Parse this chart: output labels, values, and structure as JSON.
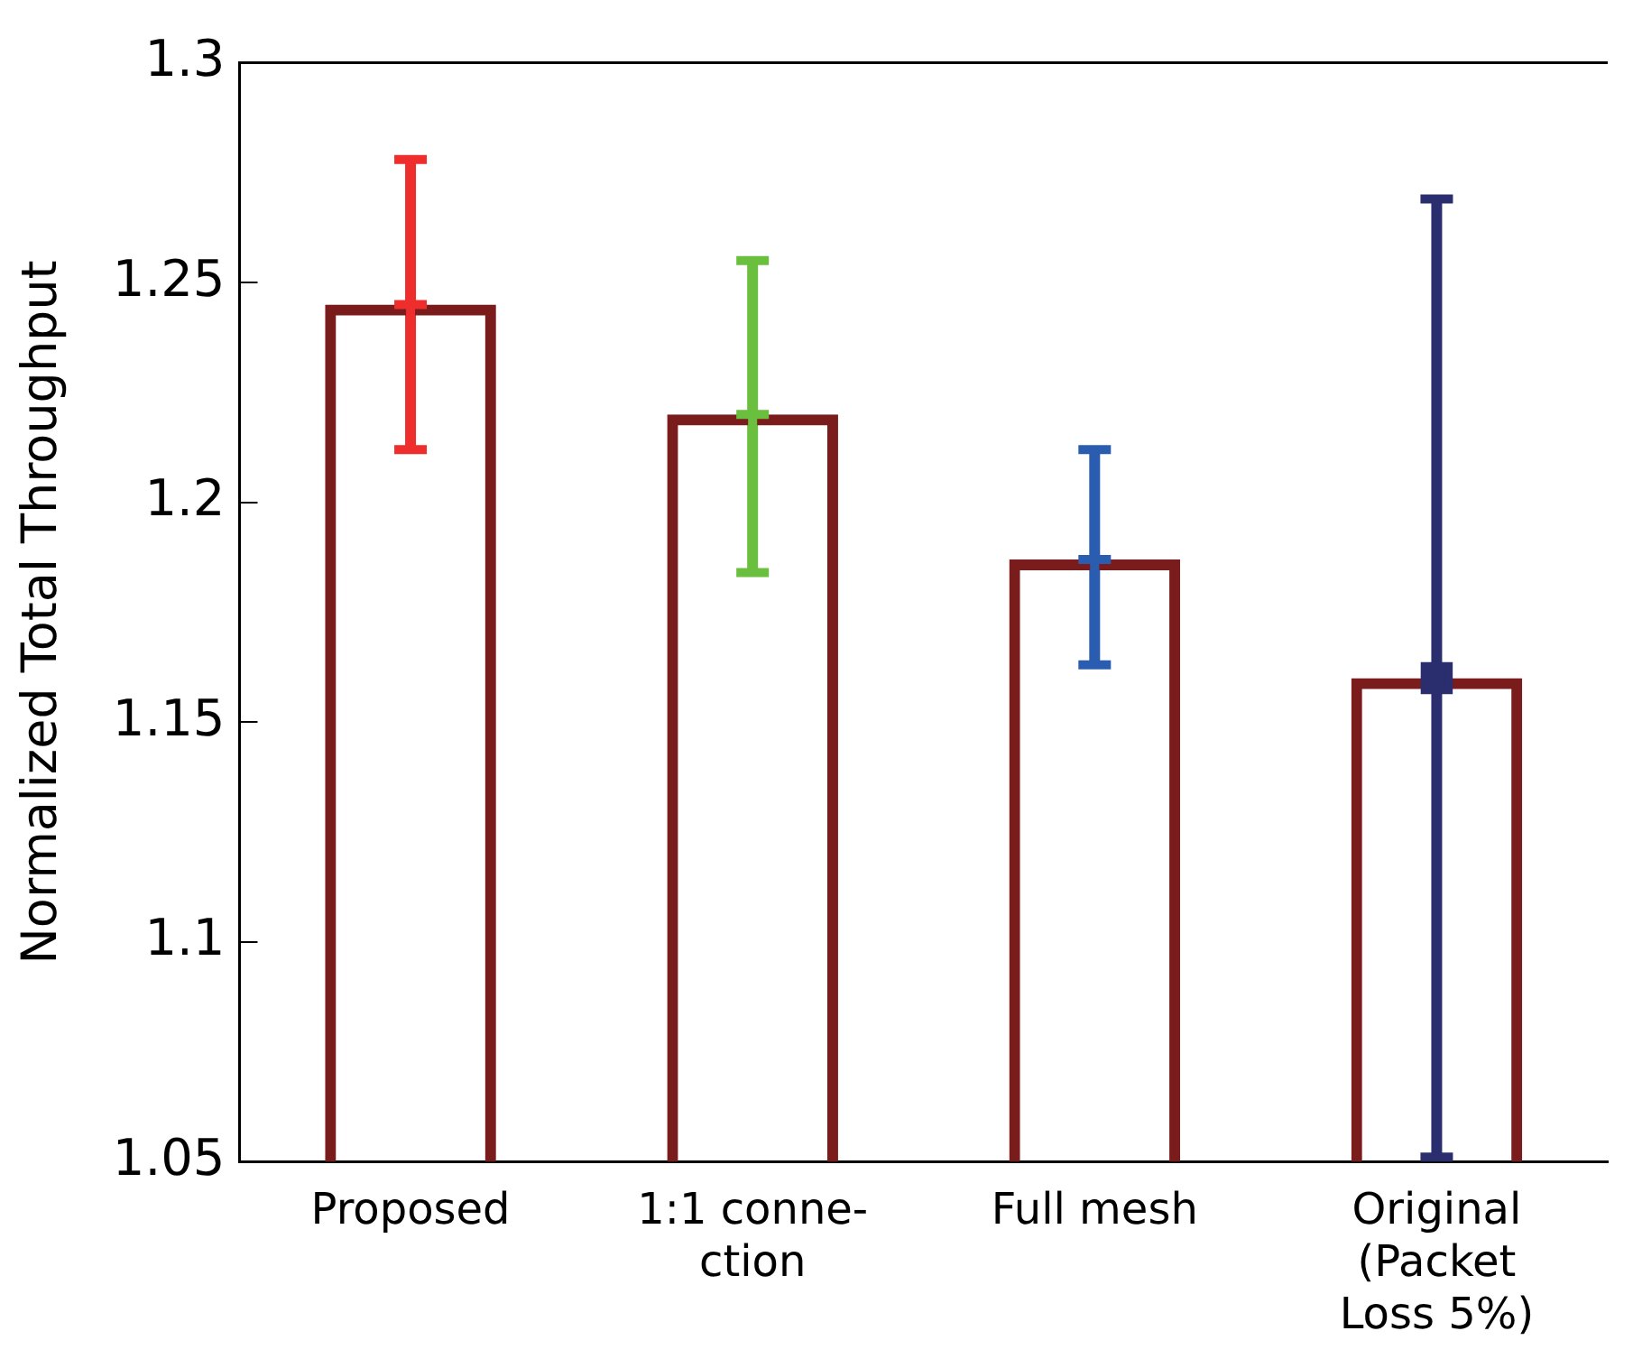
{
  "chart_data": {
    "type": "bar",
    "ylabel": "Normalized Total Throughput",
    "categories": [
      "Proposed",
      "1:1 conne-\nction",
      "Full mesh",
      "Original\n(Packet\nLoss 5%)"
    ],
    "series": [
      {
        "type": "bar",
        "color": "#7b1c1c",
        "values": [
          1.245,
          1.22,
          1.187,
          1.16
        ]
      },
      {
        "type": "scatter",
        "x": [
          "Proposed"
        ],
        "values": [
          1.245
        ],
        "errors": [
          [
            1.212,
            1.278
          ]
        ],
        "color": "#ee2d2d",
        "marker": "cross"
      },
      {
        "type": "scatter",
        "x": [
          "1:1 conne-\nction"
        ],
        "values": [
          1.22
        ],
        "errors": [
          [
            1.184,
            1.255
          ]
        ],
        "color": "#6abf3f",
        "marker": "cross"
      },
      {
        "type": "scatter",
        "x": [
          "Full mesh"
        ],
        "values": [
          1.187
        ],
        "errors": [
          [
            1.163,
            1.212
          ]
        ],
        "color": "#2a5db0",
        "marker": "cross"
      },
      {
        "type": "scatter",
        "x": [
          "Original\n(Packet\nLoss 5%)"
        ],
        "values": [
          1.16
        ],
        "errors": [
          [
            1.051,
            1.269
          ]
        ],
        "color": "#2b2e6e",
        "marker": "square"
      }
    ],
    "ylim": [
      1.05,
      1.3
    ],
    "yticks": [
      1.05,
      1.1,
      1.15,
      1.2,
      1.25,
      1.3
    ],
    "grid": false,
    "legend": false
  }
}
